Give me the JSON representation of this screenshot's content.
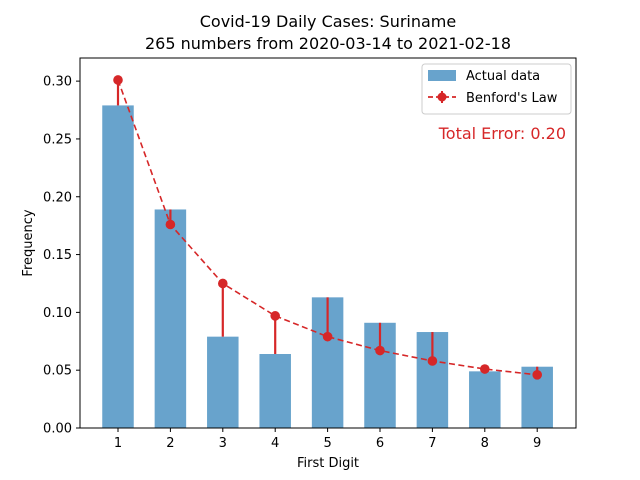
{
  "chart_data": {
    "type": "bar",
    "title": "Covid-19 Daily Cases: Suriname",
    "subtitle": "265 numbers from 2020-03-14 to 2021-02-18",
    "xlabel": "First Digit",
    "ylabel": "Frequency",
    "categories": [
      "1",
      "2",
      "3",
      "4",
      "5",
      "6",
      "7",
      "8",
      "9"
    ],
    "ylim": [
      0,
      0.32
    ],
    "yticks": [
      "0.00",
      "0.05",
      "0.10",
      "0.15",
      "0.20",
      "0.25",
      "0.30"
    ],
    "series": [
      {
        "name": "Actual data",
        "type": "bar",
        "color": "#5b9bc8",
        "values": [
          0.279,
          0.189,
          0.079,
          0.064,
          0.113,
          0.091,
          0.083,
          0.049,
          0.053
        ]
      },
      {
        "name": "Benford's Law",
        "type": "line",
        "style": "dashed with error bars",
        "color": "#d62728",
        "values": [
          0.301,
          0.176,
          0.125,
          0.097,
          0.079,
          0.067,
          0.058,
          0.051,
          0.046
        ]
      }
    ],
    "annotation": {
      "text": "Total Error: 0.20",
      "color": "#d62728"
    },
    "legend_position": "top-right",
    "grid": false
  }
}
